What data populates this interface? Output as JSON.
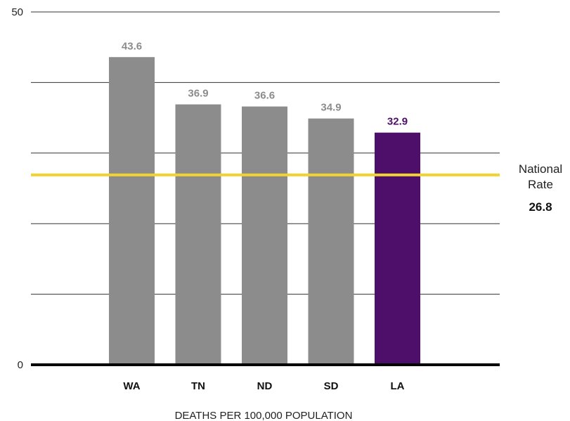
{
  "chart_data": {
    "type": "bar",
    "categories": [
      "WA",
      "TN",
      "ND",
      "SD",
      "LA"
    ],
    "values": [
      43.6,
      36.9,
      36.6,
      34.9,
      32.9
    ],
    "value_labels": [
      "43.6",
      "36.9",
      "36.6",
      "34.9",
      "32.9"
    ],
    "bar_colors": [
      "#8c8c8c",
      "#8c8c8c",
      "#8c8c8c",
      "#8c8c8c",
      "#4e0f6b"
    ],
    "label_colors": [
      "#8c8c8c",
      "#8c8c8c",
      "#8c8c8c",
      "#8c8c8c",
      "#4e0f6b"
    ],
    "ylim": [
      0,
      50
    ],
    "yticks": [
      0,
      10,
      20,
      30,
      40,
      50
    ],
    "ytick_labels": [
      "0",
      "",
      "",
      "",
      "",
      "50"
    ],
    "grid": true,
    "xlabel": "DEATHS PER 100,000 POPULATION",
    "reference_line": {
      "value": 26.8,
      "label_line1": "National",
      "label_line2": "Rate",
      "value_label": "26.8",
      "color": "#f2d230"
    }
  }
}
